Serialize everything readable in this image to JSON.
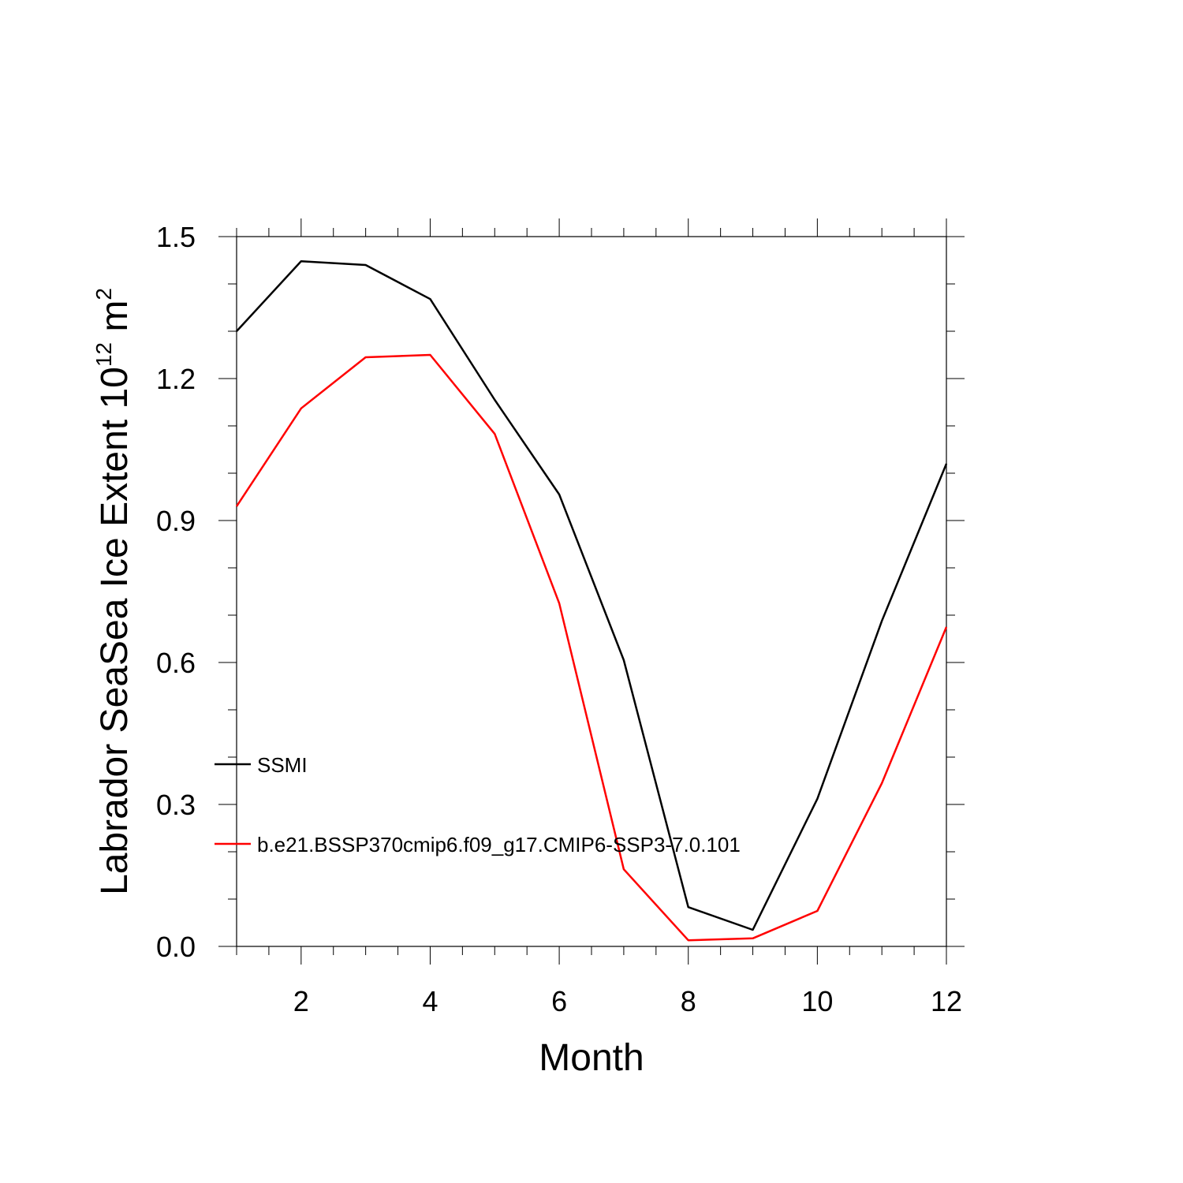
{
  "chart_data": {
    "type": "line",
    "title": "",
    "xlabel": "Month",
    "ylabel_main": "Labrador SeaSea Ice Extent 10",
    "ylabel_exponent": "12",
    "ylabel_unit": " m",
    "ylabel_unit_exponent": "2",
    "xlim": [
      1,
      12
    ],
    "ylim": [
      0.0,
      1.5
    ],
    "xticks": [
      2,
      4,
      6,
      8,
      10,
      12
    ],
    "xtick_labels": [
      "2",
      "4",
      "6",
      "8",
      "10",
      "12"
    ],
    "yticks": [
      0.0,
      0.3,
      0.6,
      0.9,
      1.2,
      1.5
    ],
    "ytick_labels": [
      "0.0",
      "0.3",
      "0.6",
      "0.9",
      "1.2",
      "1.5"
    ],
    "grid": false,
    "legend_placement": "lower-left inside",
    "x": [
      1,
      2,
      3,
      4,
      5,
      6,
      7,
      8,
      9,
      10,
      11,
      12
    ],
    "series": [
      {
        "name": "SSMI",
        "color": "#000000",
        "values": [
          1.3,
          1.448,
          1.44,
          1.368,
          1.155,
          0.955,
          0.605,
          0.083,
          0.035,
          0.312,
          0.688,
          1.02
        ]
      },
      {
        "name": "b.e21.BSSP370cmip6.f09_g17.CMIP6-SSP3-7.0.101",
        "color": "#ff0000",
        "values": [
          0.93,
          1.137,
          1.245,
          1.25,
          1.083,
          0.725,
          0.163,
          0.013,
          0.017,
          0.075,
          0.345,
          0.675
        ]
      }
    ]
  }
}
